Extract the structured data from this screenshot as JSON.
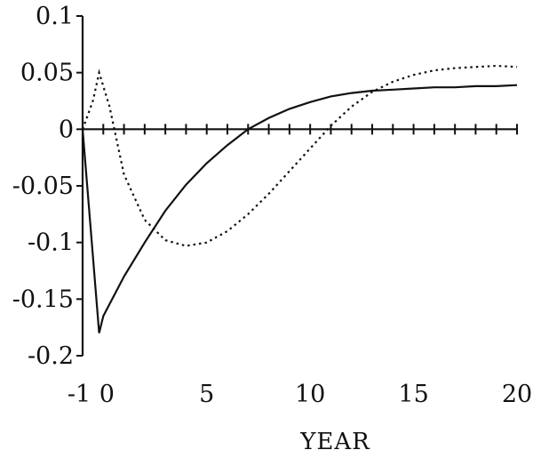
{
  "chart_data": {
    "type": "line",
    "title": "",
    "xlabel": "YEAR",
    "ylabel": "",
    "xlim": [
      -1,
      20
    ],
    "ylim": [
      -0.2,
      0.1
    ],
    "x_ticks": [
      -1,
      0,
      5,
      10,
      15,
      20
    ],
    "x_tick_labels": [
      "-1",
      "0",
      "5",
      "10",
      "15",
      "20"
    ],
    "y_ticks": [
      0.1,
      0.05,
      0,
      -0.05,
      -0.1,
      -0.15,
      -0.2
    ],
    "y_tick_labels": [
      "0.1",
      "0.05",
      "0",
      "-0.05",
      "-0.1",
      "-0.15",
      "-0.2"
    ],
    "grid": false,
    "legend": "none",
    "series": [
      {
        "style": "solid",
        "x": [
          -1,
          -0.2,
          0,
          1,
          2,
          3,
          4,
          5,
          6,
          7,
          8,
          9,
          10,
          11,
          12,
          13,
          14,
          15,
          16,
          17,
          18,
          19,
          20
        ],
        "y": [
          0.0,
          -0.18,
          -0.165,
          -0.13,
          -0.1,
          -0.072,
          -0.049,
          -0.03,
          -0.014,
          0.0,
          0.01,
          0.018,
          0.024,
          0.029,
          0.032,
          0.034,
          0.035,
          0.036,
          0.037,
          0.037,
          0.038,
          0.038,
          0.039
        ]
      },
      {
        "style": "dotted",
        "x": [
          -1,
          -0.5,
          -0.2,
          0.3,
          1,
          2,
          3,
          4,
          5,
          6,
          7,
          8,
          9,
          10,
          11,
          12,
          13,
          14,
          15,
          16,
          17,
          18,
          19,
          20
        ],
        "y": [
          0.0,
          0.025,
          0.05,
          0.02,
          -0.04,
          -0.08,
          -0.098,
          -0.103,
          -0.1,
          -0.09,
          -0.075,
          -0.057,
          -0.037,
          -0.017,
          0.003,
          0.02,
          0.033,
          0.042,
          0.048,
          0.052,
          0.054,
          0.055,
          0.056,
          0.055
        ]
      }
    ]
  }
}
